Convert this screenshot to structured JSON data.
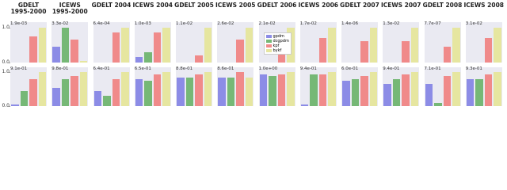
{
  "legend": {
    "labels": [
      "gpdm",
      "dcgpdm",
      "kpf",
      "bykf"
    ],
    "colors": [
      "#8c8ce6",
      "#76b876",
      "#f08a8a",
      "#e6e6a0"
    ]
  },
  "chart_data": [
    {
      "type": "bar",
      "title": "GDELT 1995-2000",
      "annotation": "1.9e-03",
      "values": [
        0,
        0,
        0.75,
        1.0
      ],
      "ylim": [
        0,
        1.15
      ],
      "yticks": [
        {
          "value": 0,
          "label": "0.0"
        },
        {
          "value": 1,
          "label": "1.0"
        }
      ]
    },
    {
      "type": "bar",
      "title": "ICEWS 1995-2000",
      "annotation": "3.3e-02",
      "values": [
        0.45,
        1.0,
        0.65,
        0.05
      ],
      "ylim": [
        0,
        1.15
      ]
    },
    {
      "type": "bar",
      "title": "GDELT 2004",
      "annotation": "6.4e-04",
      "values": [
        0,
        0,
        0.85,
        1.0
      ],
      "ylim": [
        0,
        1.15
      ]
    },
    {
      "type": "bar",
      "title": "ICEWS 2004",
      "annotation": "1.0e-03",
      "values": [
        0.15,
        0.3,
        0.85,
        1.0
      ],
      "ylim": [
        0,
        1.15
      ]
    },
    {
      "type": "bar",
      "title": "GDELT 2005",
      "annotation": "1.1e-02",
      "values": [
        0,
        0,
        0.2,
        1.0
      ],
      "ylim": [
        0,
        1.15
      ]
    },
    {
      "type": "bar",
      "title": "ICEWS 2005",
      "annotation": "2.6e-02",
      "values": [
        0,
        0,
        0.65,
        1.0
      ],
      "ylim": [
        0,
        1.15
      ]
    },
    {
      "type": "bar",
      "title": "GDELT 2006",
      "annotation": "2.1e-02",
      "values": [
        0,
        0,
        0.8,
        1.0
      ],
      "ylim": [
        0,
        1.15
      ]
    },
    {
      "type": "bar",
      "title": "ICEWS 2006",
      "annotation": "1.7e-02",
      "values": [
        0,
        0,
        0.7,
        1.0
      ],
      "ylim": [
        0,
        1.15
      ]
    },
    {
      "type": "bar",
      "title": "GDELT 2007",
      "annotation": "1.4e-06",
      "values": [
        0,
        0,
        0.6,
        1.0
      ],
      "ylim": [
        0,
        1.15
      ]
    },
    {
      "type": "bar",
      "title": "ICEWS 2007",
      "annotation": "1.3e-02",
      "values": [
        0,
        0,
        0.6,
        1.0
      ],
      "ylim": [
        0,
        1.15
      ]
    },
    {
      "type": "bar",
      "title": "GDELT 2008",
      "annotation": "7.7e-07",
      "values": [
        0,
        0,
        0.45,
        1.0
      ],
      "ylim": [
        0,
        1.15
      ]
    },
    {
      "type": "bar",
      "title": "ICEWS 2008",
      "annotation": "3.1e-02",
      "values": [
        0,
        0,
        0.7,
        1.0
      ],
      "ylim": [
        0,
        1.15
      ]
    },
    {
      "type": "bar",
      "annotation": "9.1e-01",
      "values": [
        0.05,
        0.45,
        0.8,
        1.0
      ],
      "ylim": [
        0,
        1.15
      ],
      "yticks": [
        {
          "value": 0,
          "label": "0.0"
        },
        {
          "value": 1,
          "label": "1.0"
        }
      ]
    },
    {
      "type": "bar",
      "annotation": "9.8e-01",
      "values": [
        0.55,
        0.8,
        0.9,
        1.0
      ],
      "ylim": [
        0,
        1.15
      ]
    },
    {
      "type": "bar",
      "annotation": "6.4e-01",
      "values": [
        0.45,
        0.3,
        0.8,
        1.0
      ],
      "ylim": [
        0,
        1.15
      ]
    },
    {
      "type": "bar",
      "annotation": "6.5e-01",
      "values": [
        0.8,
        0.75,
        0.95,
        1.0
      ],
      "ylim": [
        0,
        1.15
      ]
    },
    {
      "type": "bar",
      "annotation": "8.8e-01",
      "values": [
        0.85,
        0.85,
        0.95,
        1.0
      ],
      "ylim": [
        0,
        1.15
      ]
    },
    {
      "type": "bar",
      "annotation": "8.6e-01",
      "values": [
        0.85,
        0.85,
        1.0,
        0.85
      ],
      "ylim": [
        0,
        1.15
      ]
    },
    {
      "type": "bar",
      "annotation": "1.0e+00",
      "values": [
        0.95,
        0.9,
        0.95,
        1.0
      ],
      "ylim": [
        0,
        1.15
      ]
    },
    {
      "type": "bar",
      "annotation": "9.4e-01",
      "values": [
        0.05,
        0.95,
        0.95,
        1.0
      ],
      "ylim": [
        0,
        1.15
      ]
    },
    {
      "type": "bar",
      "annotation": "6.0e-01",
      "values": [
        0.75,
        0.8,
        0.9,
        1.0
      ],
      "ylim": [
        0,
        1.15
      ]
    },
    {
      "type": "bar",
      "annotation": "9.4e-01",
      "values": [
        0.65,
        0.8,
        0.95,
        1.0
      ],
      "ylim": [
        0,
        1.15
      ]
    },
    {
      "type": "bar",
      "annotation": "7.1e-01",
      "values": [
        0.65,
        0.1,
        0.9,
        1.0
      ],
      "ylim": [
        0,
        1.15
      ]
    },
    {
      "type": "bar",
      "annotation": "9.3e-01",
      "values": [
        0.8,
        0.8,
        0.95,
        1.0
      ],
      "ylim": [
        0,
        1.15
      ]
    }
  ]
}
